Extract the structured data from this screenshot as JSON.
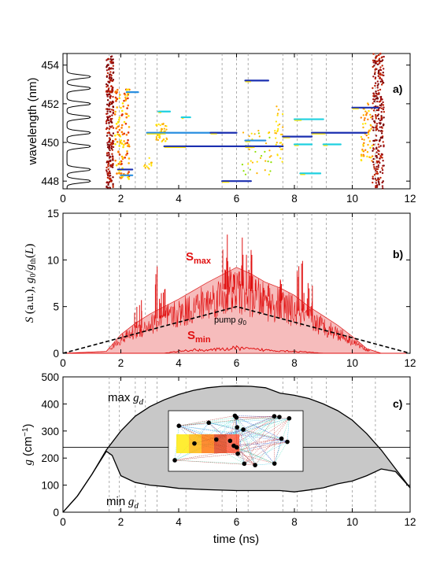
{
  "chart_data": [
    {
      "panel": "a)",
      "type": "scatter",
      "ylabel": "wavelength (nm)",
      "xlim": [
        0,
        12
      ],
      "ylim": [
        447.6,
        454.6
      ],
      "x_ticks": [
        0,
        2,
        4,
        6,
        8,
        10,
        12
      ],
      "y_ticks": [
        448,
        450,
        452,
        454
      ],
      "horizontal_lines": [
        {
          "x": [
            6.3,
            7.1
          ],
          "y": 453.2,
          "color": "#1a2fb0"
        },
        {
          "x": [
            2.2,
            2.6
          ],
          "y": 452.6,
          "color": "#2a8fe0"
        },
        {
          "x": [
            3.3,
            3.7
          ],
          "y": 451.6,
          "color": "#1fd0e0"
        },
        {
          "x": [
            2.9,
            5.5
          ],
          "y": 450.5,
          "color": "#2a8fe0"
        },
        {
          "x": [
            5.1,
            6.0
          ],
          "y": 450.5,
          "color": "#1a2fb0"
        },
        {
          "x": [
            3.5,
            6.5
          ],
          "y": 449.8,
          "color": "#1a2fb0"
        },
        {
          "x": [
            6.3,
            7.6
          ],
          "y": 449.8,
          "color": "#1a2fb0"
        },
        {
          "x": [
            6.3,
            7.0
          ],
          "y": 450.1,
          "color": "#2a8fe0"
        },
        {
          "x": [
            7.6,
            8.6
          ],
          "y": 450.3,
          "color": "#1a2fb0"
        },
        {
          "x": [
            8.6,
            10.5
          ],
          "y": 450.5,
          "color": "#1a2fb0"
        },
        {
          "x": [
            8.0,
            8.6
          ],
          "y": 449.9,
          "color": "#1fd0e0"
        },
        {
          "x": [
            9.0,
            9.6
          ],
          "y": 449.9,
          "color": "#1fd0e0"
        },
        {
          "x": [
            8.0,
            9.0
          ],
          "y": 451.2,
          "color": "#1fd0e0"
        },
        {
          "x": [
            10.0,
            10.9
          ],
          "y": 451.8,
          "color": "#1a2fb0"
        },
        {
          "x": [
            5.5,
            6.5
          ],
          "y": 448.0,
          "color": "#1a2fb0"
        },
        {
          "x": [
            1.9,
            2.4
          ],
          "y": 448.6,
          "color": "#1a2fb0"
        },
        {
          "x": [
            2.0,
            2.4
          ],
          "y": 448.3,
          "color": "#2a8fe0"
        },
        {
          "x": [
            8.2,
            8.9
          ],
          "y": 448.4,
          "color": "#1fd0e0"
        },
        {
          "x": [
            4.1,
            4.4
          ],
          "y": 451.3,
          "color": "#1fd0e0"
        }
      ],
      "guides_x": [
        1.6,
        1.95,
        2.5,
        2.85,
        3.25,
        4.25,
        5.5,
        6.0,
        6.4,
        7.6,
        8.1,
        8.6,
        9.1,
        10.0,
        10.8
      ],
      "spectrum_peaks_nm": [
        448.0,
        448.6,
        449.8,
        450.5,
        451.3,
        452.0,
        452.8,
        453.4
      ]
    },
    {
      "panel": "b)",
      "type": "area",
      "ylabel": "S (a.u.), g0/gth(L)",
      "xlim": [
        0,
        12
      ],
      "ylim": [
        0,
        15
      ],
      "x_ticks": [
        0,
        2,
        4,
        6,
        8,
        10,
        12
      ],
      "y_ticks": [
        0,
        5,
        10,
        15
      ],
      "annotations": {
        "smax": "max",
        "smin": "min",
        "pump": "pump"
      },
      "series": [
        {
          "label_id": "smax",
          "x": [
            0,
            1.5,
            2.0,
            2.5,
            3.0,
            3.5,
            4.0,
            4.5,
            5.0,
            5.5,
            6.0,
            6.5,
            7.0,
            7.5,
            8.0,
            8.5,
            9.0,
            9.5,
            10.0,
            10.5,
            11.0
          ],
          "y": [
            0,
            0.2,
            2.0,
            3.2,
            4.2,
            5.0,
            5.8,
            6.7,
            7.6,
            8.4,
            9.2,
            8.5,
            7.6,
            7.0,
            6.2,
            5.0,
            4.0,
            3.0,
            1.8,
            0.5,
            0
          ]
        },
        {
          "label_id": "smin",
          "x": [
            0,
            3.5,
            4.0,
            4.5,
            5.0,
            5.5,
            6.0,
            6.5,
            7.0,
            7.5,
            8.0,
            9.0,
            12
          ],
          "y": [
            0,
            0,
            0.3,
            0.5,
            0.5,
            0.6,
            0.8,
            0.6,
            0.5,
            0.4,
            0.3,
            0,
            0
          ]
        },
        {
          "label_id": "pump",
          "x": [
            0,
            6,
            12
          ],
          "y": [
            0,
            5,
            0
          ]
        }
      ],
      "spikes": [
        {
          "x": 3.3,
          "y": 9.3
        },
        {
          "x": 3.5,
          "y": 7.5
        },
        {
          "x": 5.6,
          "y": 13.0
        },
        {
          "x": 5.8,
          "y": 11.0
        },
        {
          "x": 6.1,
          "y": 12.5
        },
        {
          "x": 6.4,
          "y": 11.7
        },
        {
          "x": 6.6,
          "y": 10.0
        },
        {
          "x": 7.0,
          "y": 9.0
        },
        {
          "x": 7.5,
          "y": 8.8
        },
        {
          "x": 8.2,
          "y": 10.0
        },
        {
          "x": 8.5,
          "y": 8.0
        },
        {
          "x": 2.6,
          "y": 5.8
        }
      ]
    },
    {
      "panel": "c)",
      "type": "area",
      "xlabel": "time (ns)",
      "ylabel": "g (cm−1)",
      "xlim": [
        0,
        12
      ],
      "ylim": [
        0,
        500
      ],
      "x_ticks": [
        0,
        2,
        4,
        6,
        8,
        10,
        12
      ],
      "y_ticks": [
        0,
        100,
        200,
        300,
        400,
        500
      ],
      "threshold": 240,
      "annotations": {
        "gmax": "max",
        "gmin": "min"
      },
      "series": [
        {
          "label_id": "gmax",
          "x": [
            0,
            0.5,
            1.0,
            1.5,
            2.0,
            2.5,
            3.0,
            3.5,
            4.0,
            4.5,
            5.0,
            5.5,
            6.0,
            6.5,
            7.0,
            7.5,
            8.0,
            8.5,
            9.0,
            9.5,
            10.0,
            10.5,
            11.0,
            11.5,
            12.0
          ],
          "y": [
            0,
            60,
            140,
            230,
            300,
            355,
            390,
            415,
            435,
            450,
            460,
            465,
            466,
            465,
            460,
            440,
            432,
            420,
            400,
            375,
            340,
            290,
            230,
            160,
            90
          ]
        },
        {
          "label_id": "gmin",
          "x": [
            0,
            0.5,
            1.0,
            1.5,
            1.7,
            2.0,
            2.5,
            3.0,
            3.5,
            4.0,
            5.0,
            6.0,
            7.0,
            7.5,
            8.0,
            8.5,
            9.0,
            9.5,
            10.0,
            10.5,
            11.0,
            11.5,
            12.0
          ],
          "y": [
            0,
            60,
            140,
            225,
            210,
            135,
            110,
            100,
            95,
            88,
            83,
            80,
            80,
            80,
            75,
            82,
            90,
            105,
            115,
            135,
            160,
            150,
            90
          ]
        }
      ],
      "inset_nodes": 21
    }
  ]
}
